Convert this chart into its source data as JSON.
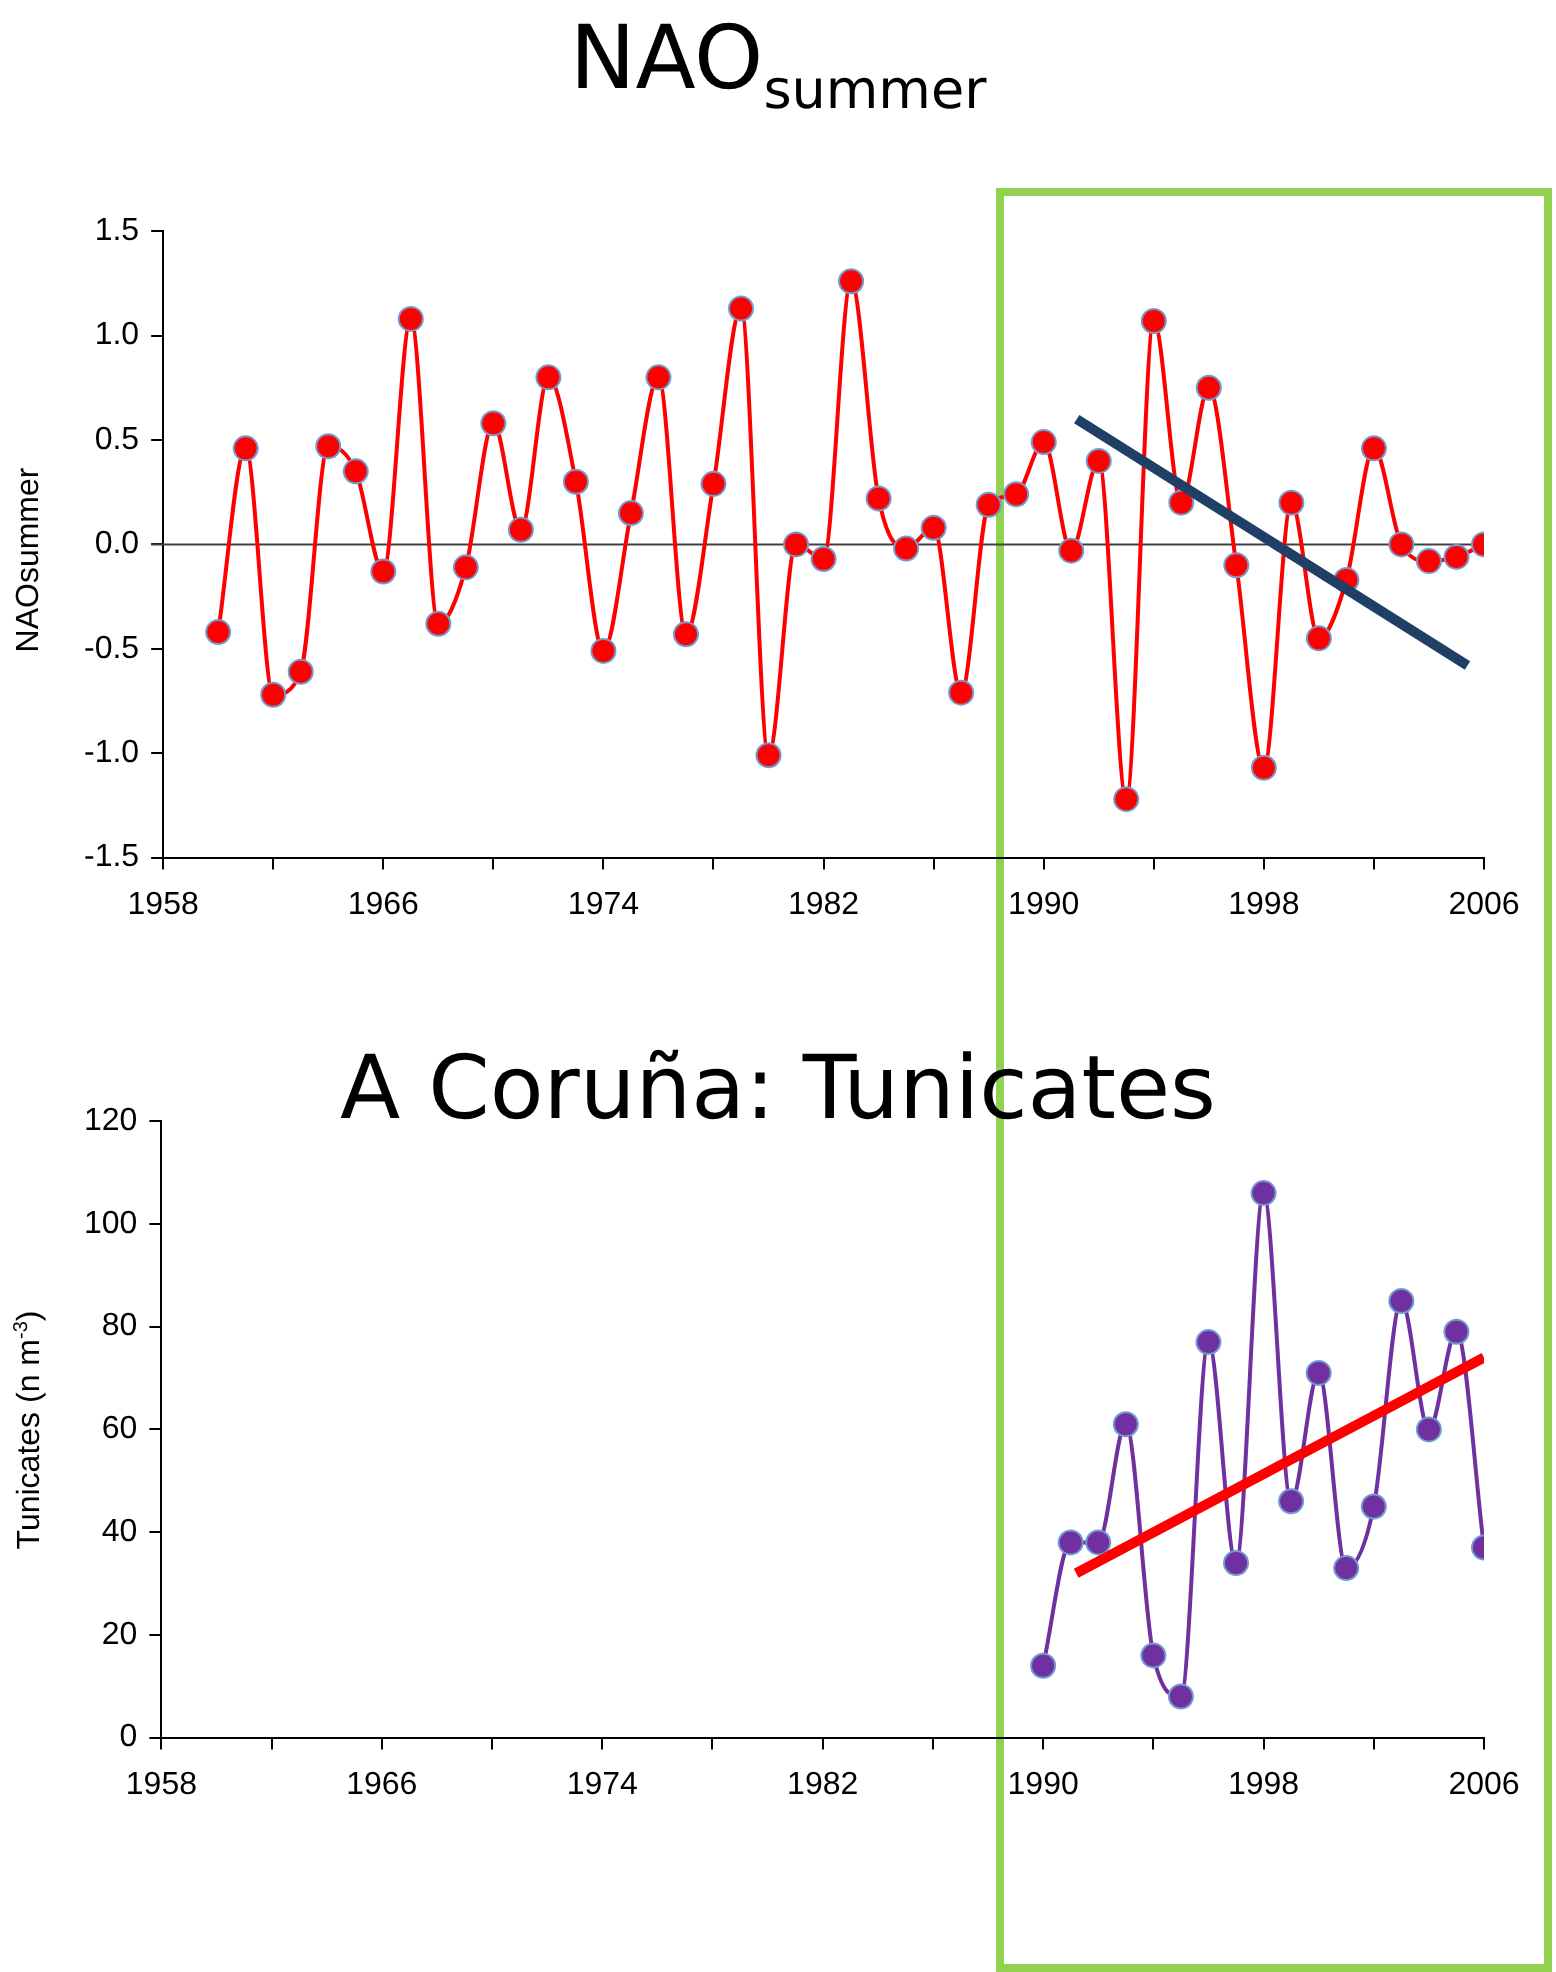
{
  "chart_data": [
    {
      "type": "line",
      "title": "NAO$_{summer}$",
      "ylabel": "NAOsummer",
      "xlim": [
        1958,
        2006
      ],
      "xticks": [
        1958,
        {
          "value": 1962,
          "label": null
        },
        1966,
        {
          "value": 1970,
          "label": null
        },
        1974,
        {
          "value": 1978,
          "label": null
        },
        1982,
        {
          "value": 1986,
          "label": null
        },
        1990,
        {
          "value": 1994,
          "label": null
        },
        1998,
        {
          "value": 2002,
          "label": null
        },
        2006
      ],
      "ylim": [
        -1.5,
        1.5
      ],
      "yticks": [
        -1.5,
        {
          "value": -1,
          "label": "-1.0"
        },
        -0.5,
        {
          "value": 0,
          "label": "0.0"
        },
        0.5,
        {
          "value": 1,
          "label": "1.0"
        },
        1.5
      ],
      "ref_lines": [
        {
          "axis": "y",
          "value": 0,
          "color": "#404040"
        }
      ],
      "series": [
        {
          "type": "line",
          "color": "#ff0000",
          "marker": "circle",
          "x": [
            1960,
            1961,
            1962,
            1963,
            1964,
            1965,
            1966,
            1967,
            1968,
            1969,
            1970,
            1971,
            1972,
            1973,
            1974,
            1975,
            1976,
            1977,
            1978,
            1979,
            1980,
            1981,
            1982,
            1983,
            1984,
            1985,
            1986,
            1987,
            1988,
            1989,
            1990,
            1991,
            1992,
            1993,
            1994,
            1995,
            1996,
            1997,
            1998,
            1999,
            2000,
            2001,
            2002,
            2003,
            2004,
            2005,
            2006
          ],
          "values": [
            -0.42,
            0.46,
            -0.72,
            -0.61,
            0.47,
            0.35,
            -0.13,
            1.08,
            -0.38,
            -0.11,
            0.58,
            0.07,
            0.8,
            0.3,
            -0.51,
            0.15,
            0.8,
            -0.43,
            0.29,
            1.13,
            -1.01,
            0.0,
            -0.07,
            1.26,
            0.22,
            -0.02,
            0.08,
            -0.71,
            0.19,
            0.24,
            0.49,
            -0.03,
            0.4,
            -1.22,
            1.07,
            0.2,
            0.75,
            -0.1,
            -1.07,
            0.2,
            -0.45,
            -0.17,
            0.46,
            0.0,
            -0.08,
            -0.06,
            0.0
          ]
        },
        {
          "type": "line",
          "color": "#1f3f66",
          "marker": "none",
          "x": [
            1991.2,
            2005.4
          ],
          "values": [
            0.6,
            -0.58
          ]
        }
      ]
    },
    {
      "type": "line",
      "title": "A Coruña: Tunicates",
      "ylabel": "Tunicates (n m$^{-3}$)",
      "xlim": [
        1958,
        2006
      ],
      "xticks": [
        1958,
        {
          "value": 1962,
          "label": null
        },
        1966,
        {
          "value": 1970,
          "label": null
        },
        1974,
        {
          "value": 1978,
          "label": null
        },
        1982,
        {
          "value": 1986,
          "label": null
        },
        1990,
        {
          "value": 1994,
          "label": null
        },
        1998,
        {
          "value": 2002,
          "label": null
        },
        2006
      ],
      "ylim": [
        0,
        120
      ],
      "yticks": [
        0,
        20,
        40,
        60,
        80,
        100,
        120
      ],
      "series": [
        {
          "type": "line",
          "color": "#7030a0",
          "marker": "circle",
          "x": [
            1990,
            1991,
            1992,
            1993,
            1994,
            1995,
            1996,
            1997,
            1998,
            1999,
            2000,
            2001,
            2002,
            2003,
            2004,
            2005,
            2006
          ],
          "values": [
            14,
            38,
            38,
            61,
            16,
            8,
            77,
            34,
            106,
            46,
            71,
            33,
            45,
            85,
            60,
            79,
            37
          ]
        },
        {
          "type": "line",
          "color": "#ff0000",
          "marker": "none",
          "x": [
            1991.2,
            2006
          ],
          "values": [
            32,
            74
          ]
        }
      ]
    }
  ]
}
